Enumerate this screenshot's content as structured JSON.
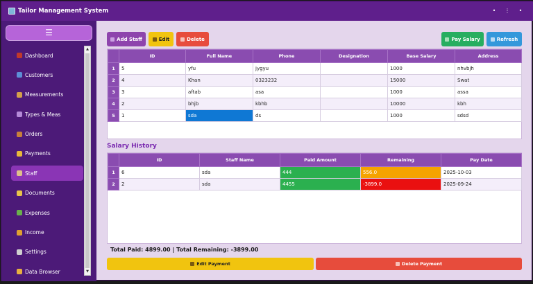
{
  "window": {
    "title": "Tailor Management System",
    "controls": [
      "•",
      "⋮",
      "•"
    ]
  },
  "sidebar": {
    "menu_icon": "☰",
    "items": [
      {
        "label": "Dashboard",
        "icon": "bar-chart-icon",
        "color": "#c0392b"
      },
      {
        "label": "Customers",
        "icon": "users-icon",
        "color": "#5d8fd6"
      },
      {
        "label": "Measurements",
        "icon": "ruler-icon",
        "color": "#d4a04a"
      },
      {
        "label": "Types & Meas",
        "icon": "thread-icon",
        "color": "#b48ad8"
      },
      {
        "label": "Orders",
        "icon": "box-icon",
        "color": "#c8803a"
      },
      {
        "label": "Payments",
        "icon": "credit-card-icon",
        "color": "#e8b83a"
      },
      {
        "label": "Staff",
        "icon": "staff-icon",
        "color": "#e0c08a"
      },
      {
        "label": "Documents",
        "icon": "document-icon",
        "color": "#e8c44a"
      },
      {
        "label": "Expenses",
        "icon": "money-icon",
        "color": "#6ab04c"
      },
      {
        "label": "Income",
        "icon": "money-bag-icon",
        "color": "#e0a030"
      },
      {
        "label": "Settings",
        "icon": "gear-icon",
        "color": "#d0d0d0"
      },
      {
        "label": "Data Browser",
        "icon": "folder-icon",
        "color": "#e8b040"
      }
    ],
    "active_index": 6
  },
  "toolbar": {
    "add_label": "Add Staff",
    "edit_label": "Edit",
    "delete_label": "Delete",
    "pay_label": "Pay Salary",
    "refresh_label": "Refresh"
  },
  "staff_table": {
    "columns": [
      "ID",
      "Full Name",
      "Phone",
      "Designation",
      "Base Salary",
      "Address"
    ],
    "rows": [
      {
        "n": "1",
        "cells": [
          "5",
          "yfu",
          "jygyu",
          "",
          "1000",
          "nhvbjh"
        ]
      },
      {
        "n": "2",
        "cells": [
          "4",
          "Khan",
          "0323232",
          "",
          "15000",
          "Swat"
        ]
      },
      {
        "n": "3",
        "cells": [
          "3",
          "aftab",
          "asa",
          "",
          "1000",
          "assa"
        ]
      },
      {
        "n": "4",
        "cells": [
          "2",
          "bhjb",
          "kbhb",
          "",
          "10000",
          "kbh"
        ]
      },
      {
        "n": "5",
        "cells": [
          "1",
          "sda",
          "ds",
          "",
          "1000",
          "sdsd"
        ]
      }
    ],
    "selected_row": 4,
    "selected_col": 1
  },
  "salary_history": {
    "title": "Salary History",
    "columns": [
      "ID",
      "Staff Name",
      "Paid Amount",
      "Remaining",
      "Pay Date"
    ],
    "rows": [
      {
        "n": "1",
        "cells": [
          "6",
          "sda",
          "444",
          "556.0",
          "2025-10-03"
        ],
        "remaining_status": "orange"
      },
      {
        "n": "2",
        "cells": [
          "2",
          "sda",
          "4455",
          "-3899.0",
          "2025-09-24"
        ],
        "remaining_status": "red"
      }
    ]
  },
  "totals": {
    "text": "Total Paid: 4899.00  |  Total Remaining: -3899.00"
  },
  "footer": {
    "edit_payment_label": "Edit Payment",
    "delete_payment_label": "Delete Payment"
  },
  "colors": {
    "title_bar": "#5f1f8c",
    "sidebar": "#4c1a78",
    "header": "#8a4cb0",
    "add_button": "#8e44ad",
    "edit_button": "#f1c40f",
    "delete_button": "#e74c3c",
    "pay_button": "#27ae60",
    "refresh_button": "#3498db"
  }
}
